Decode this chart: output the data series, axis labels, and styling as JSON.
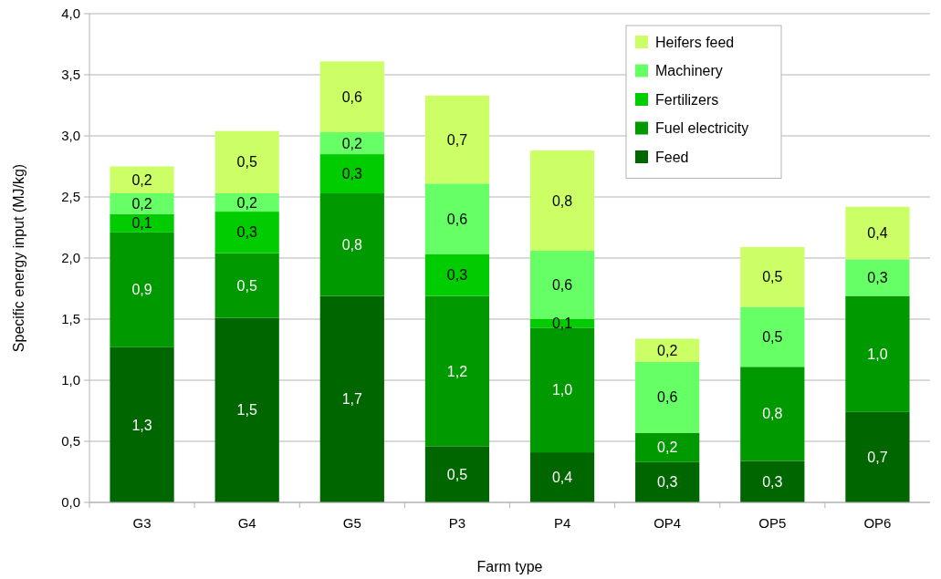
{
  "chart_data": {
    "type": "bar",
    "stacked": true,
    "xlabel": "Farm type",
    "ylabel": "Specific energy input (MJ/kg)",
    "categories": [
      "G3",
      "G4",
      "G5",
      "P3",
      "P4",
      "OP4",
      "OP5",
      "OP6"
    ],
    "series": [
      {
        "name": "Feed",
        "color": "#006600",
        "values": [
          1.27,
          1.51,
          1.69,
          0.46,
          0.41,
          0.33,
          0.34,
          0.74
        ],
        "value_labels": [
          "1,3",
          "1,5",
          "1,7",
          "0,5",
          "0,4",
          "0,3",
          "0,3",
          "0,7"
        ]
      },
      {
        "name": "Fuel electricity",
        "color": "#009900",
        "values": [
          0.94,
          0.53,
          0.84,
          1.23,
          1.02,
          0.24,
          0.77,
          0.95
        ],
        "value_labels": [
          "0,9",
          "0,5",
          "0,8",
          "1,2",
          "1,0",
          "0,2",
          "0,8",
          "1,0"
        ]
      },
      {
        "name": "Fertilizers",
        "color": "#00cc00",
        "values": [
          0.15,
          0.34,
          0.32,
          0.34,
          0.07,
          0,
          0,
          0
        ],
        "value_labels": [
          "0,1",
          "0,3",
          "0,3",
          "0,3",
          "0,1",
          null,
          null,
          null
        ]
      },
      {
        "name": "Machinery",
        "color": "#66ff66",
        "values": [
          0.17,
          0.15,
          0.18,
          0.58,
          0.56,
          0.58,
          0.49,
          0.3
        ],
        "value_labels": [
          "0,2",
          "0,2",
          "0,2",
          "0,6",
          "0,6",
          "0,6",
          "0,5",
          "0,3"
        ]
      },
      {
        "name": "Heifers feed",
        "color": "#ccff66",
        "values": [
          0.22,
          0.51,
          0.58,
          0.72,
          0.82,
          0.19,
          0.49,
          0.43
        ],
        "value_labels": [
          "0,2",
          "0,5",
          "0,6",
          "0,7",
          "0,8",
          "0,2",
          "0,5",
          "0,4"
        ]
      }
    ],
    "ylim": [
      0,
      4
    ],
    "yticks": [
      {
        "value": 0,
        "label": "0,0"
      },
      {
        "value": 0.5,
        "label": "0,5"
      },
      {
        "value": 1,
        "label": "1,0"
      },
      {
        "value": 1.5,
        "label": "1,5"
      },
      {
        "value": 2,
        "label": "2,0"
      },
      {
        "value": 2.5,
        "label": "2,5"
      },
      {
        "value": 3,
        "label": "3,0"
      },
      {
        "value": 3.5,
        "label": "3,5"
      },
      {
        "value": 4,
        "label": "4,0"
      }
    ],
    "grid": "y",
    "legend": "top right"
  }
}
